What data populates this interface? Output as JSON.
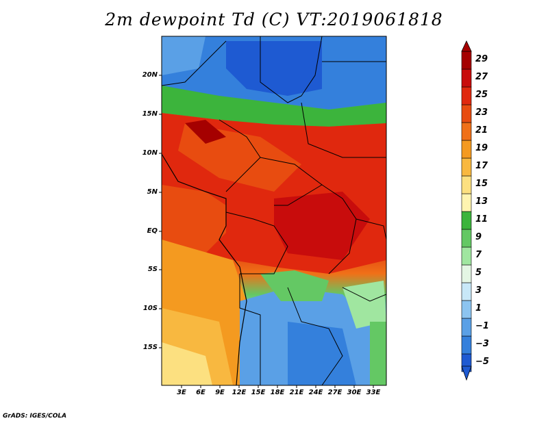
{
  "title": "2m dewpoint Td (C) VT:2019061818",
  "credit": "GrADS: IGES/COLA",
  "map": {
    "lat_labels": [
      "20N",
      "15N",
      "10N",
      "5N",
      "EQ",
      "5S",
      "10S",
      "15S"
    ],
    "lon_labels": [
      "3E",
      "6E",
      "9E",
      "12E",
      "15E",
      "18E",
      "21E",
      "24E",
      "27E",
      "30E",
      "33E"
    ]
  },
  "colorbar": {
    "labels": [
      "29",
      "27",
      "25",
      "23",
      "21",
      "19",
      "17",
      "15",
      "13",
      "11",
      "9",
      "7",
      "5",
      "3",
      "1",
      "−1",
      "−3",
      "−5"
    ],
    "colors": [
      "#a50000",
      "#c80c0c",
      "#e0280e",
      "#e84c10",
      "#f07018",
      "#f49a20",
      "#f8b840",
      "#fce080",
      "#fff4b0",
      "#3cb43c",
      "#64c864",
      "#a0e6a0",
      "#e4f6e4",
      "#c8e8f8",
      "#8cc4f0",
      "#5aa0e6",
      "#3480dc",
      "#1e5ad2"
    ]
  }
}
